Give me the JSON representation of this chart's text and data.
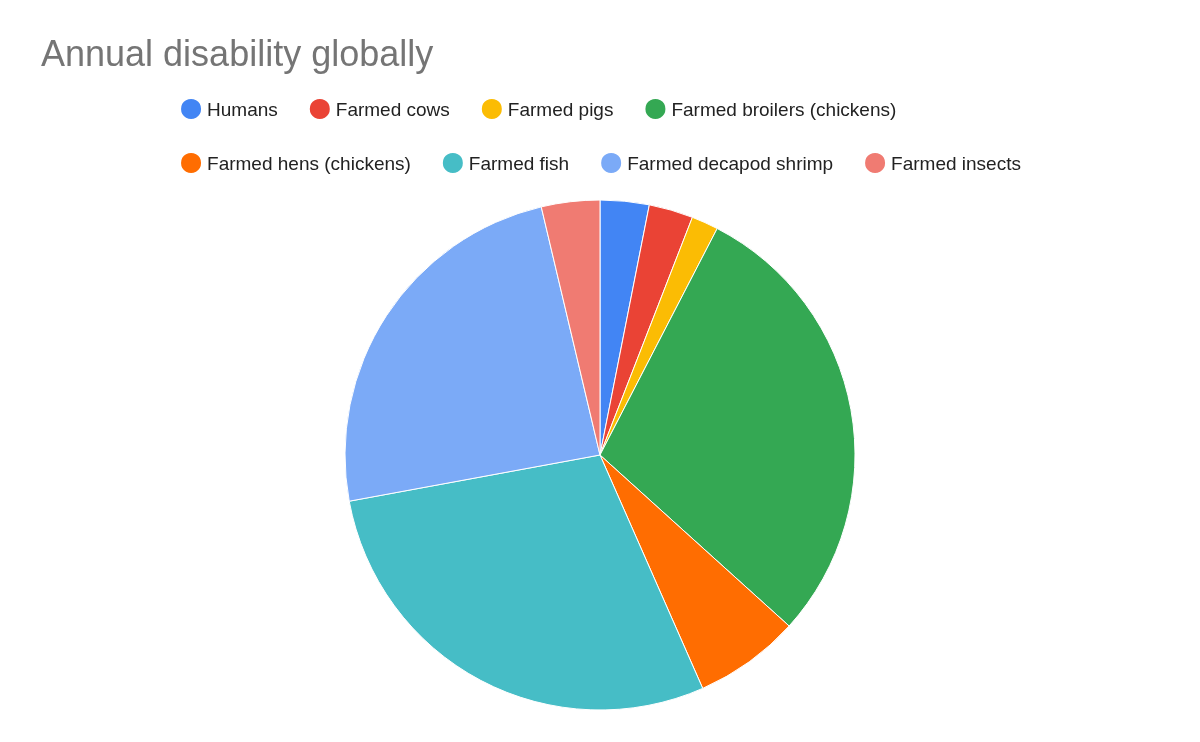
{
  "chart_data": {
    "type": "pie",
    "title": "Annual disability globally",
    "categories": [
      "Humans",
      "Farmed cows",
      "Farmed pigs",
      "Farmed broilers (chickens)",
      "Farmed hens (chickens)",
      "Farmed fish",
      "Farmed decapod shrimp",
      "Farmed insects"
    ],
    "values": [
      3.1,
      2.8,
      1.7,
      29.1,
      6.7,
      28.7,
      24.2,
      3.7
    ],
    "colors": [
      "#4285f4",
      "#ea4335",
      "#fbbc04",
      "#34a853",
      "#ff6d01",
      "#46bdc6",
      "#7baaf7",
      "#f07b72"
    ],
    "legend": "top"
  }
}
